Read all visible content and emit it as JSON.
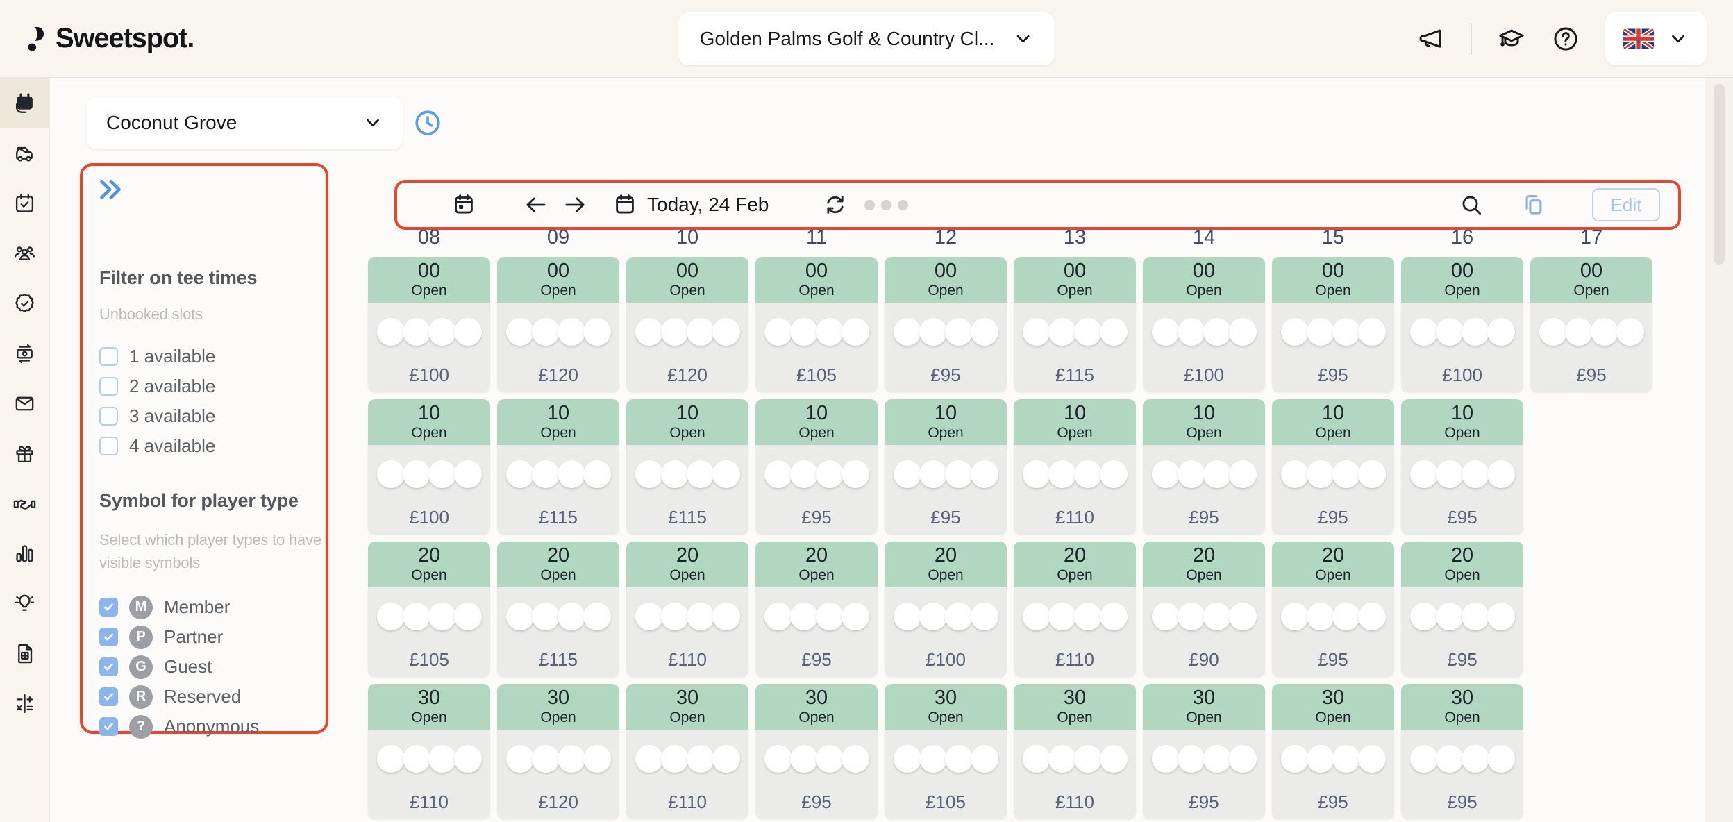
{
  "colors": {
    "cream": "#f8f5ef",
    "content_bg": "#fcfbf9",
    "divider": "#e8e5de",
    "active_item_bg": "#efe8da",
    "green": "#b1d7c1",
    "cell_body": "#ebebe9",
    "price_text": "#57627a",
    "col_header_text": "#3e4a63",
    "muted_gray": "#bdbbb8",
    "blue": "#5f9ce8",
    "checkbox_blue": "#8ab5ed",
    "badge_gray": "#9ca0a5",
    "annotation_red": "#e8452c",
    "edit_blue": "#a9c4e8"
  },
  "header": {
    "logo_text": "Sweetspot.",
    "club_selector_value": "Golden Palms Golf & Country Cl...",
    "icons": [
      "megaphone",
      "graduation-cap",
      "help",
      "uk-flag"
    ]
  },
  "sidebar": {
    "items": [
      {
        "name": "tee-sheet",
        "active": true
      },
      {
        "name": "golf-carts",
        "active": false
      },
      {
        "name": "bookings",
        "active": false
      },
      {
        "name": "members",
        "active": false
      },
      {
        "name": "memberships",
        "active": false
      },
      {
        "name": "payments",
        "active": false
      },
      {
        "name": "messages",
        "active": false
      },
      {
        "name": "vouchers",
        "active": false
      },
      {
        "name": "partners",
        "active": false
      },
      {
        "name": "statistics",
        "active": false
      },
      {
        "name": "insights",
        "active": false
      },
      {
        "name": "invoices",
        "active": false
      },
      {
        "name": "price-rules",
        "active": false
      }
    ]
  },
  "course_bar": {
    "course_selector_value": "Coconut Grove"
  },
  "filters": {
    "title": "Filter on tee times",
    "unbooked_label": "Unbooked slots",
    "unbooked_options": [
      {
        "label": "1 available",
        "checked": false
      },
      {
        "label": "2 available",
        "checked": false
      },
      {
        "label": "3 available",
        "checked": false
      },
      {
        "label": "4 available",
        "checked": false
      }
    ],
    "player_type_title": "Symbol for player type",
    "player_type_desc": "Select which player types to have visible symbols",
    "player_types": [
      {
        "symbol": "M",
        "label": "Member",
        "checked": true
      },
      {
        "symbol": "P",
        "label": "Partner",
        "checked": true
      },
      {
        "symbol": "G",
        "label": "Guest",
        "checked": true
      },
      {
        "symbol": "R",
        "label": "Reserved",
        "checked": true
      },
      {
        "symbol": "?",
        "label": "Anonymous",
        "checked": true
      }
    ]
  },
  "toolbar": {
    "date_label": "Today, 24 Feb",
    "edit_label": "Edit"
  },
  "tee_sheet": {
    "open_label": "Open",
    "slot_capacity": 4,
    "columns": [
      {
        "hour": "08",
        "slots": [
          {
            "minute": "00",
            "price": "£100"
          },
          {
            "minute": "10",
            "price": "£100"
          },
          {
            "minute": "20",
            "price": "£105"
          },
          {
            "minute": "30",
            "price": "£110"
          }
        ]
      },
      {
        "hour": "09",
        "slots": [
          {
            "minute": "00",
            "price": "£120"
          },
          {
            "minute": "10",
            "price": "£115"
          },
          {
            "minute": "20",
            "price": "£115"
          },
          {
            "minute": "30",
            "price": "£120"
          }
        ]
      },
      {
        "hour": "10",
        "slots": [
          {
            "minute": "00",
            "price": "£120"
          },
          {
            "minute": "10",
            "price": "£115"
          },
          {
            "minute": "20",
            "price": "£110"
          },
          {
            "minute": "30",
            "price": "£110"
          }
        ]
      },
      {
        "hour": "11",
        "slots": [
          {
            "minute": "00",
            "price": "£105"
          },
          {
            "minute": "10",
            "price": "£95"
          },
          {
            "minute": "20",
            "price": "£95"
          },
          {
            "minute": "30",
            "price": "£95"
          }
        ]
      },
      {
        "hour": "12",
        "slots": [
          {
            "minute": "00",
            "price": "£95"
          },
          {
            "minute": "10",
            "price": "£95"
          },
          {
            "minute": "20",
            "price": "£100"
          },
          {
            "minute": "30",
            "price": "£105"
          }
        ]
      },
      {
        "hour": "13",
        "slots": [
          {
            "minute": "00",
            "price": "£115"
          },
          {
            "minute": "10",
            "price": "£110"
          },
          {
            "minute": "20",
            "price": "£110"
          },
          {
            "minute": "30",
            "price": "£110"
          }
        ]
      },
      {
        "hour": "14",
        "slots": [
          {
            "minute": "00",
            "price": "£100"
          },
          {
            "minute": "10",
            "price": "£95"
          },
          {
            "minute": "20",
            "price": "£90"
          },
          {
            "minute": "30",
            "price": "£95"
          }
        ]
      },
      {
        "hour": "15",
        "slots": [
          {
            "minute": "00",
            "price": "£95"
          },
          {
            "minute": "10",
            "price": "£95"
          },
          {
            "minute": "20",
            "price": "£95"
          },
          {
            "minute": "30",
            "price": "£95"
          }
        ]
      },
      {
        "hour": "16",
        "slots": [
          {
            "minute": "00",
            "price": "£100"
          },
          {
            "minute": "10",
            "price": "£95"
          },
          {
            "minute": "20",
            "price": "£95"
          },
          {
            "minute": "30",
            "price": "£95"
          }
        ]
      },
      {
        "hour": "17",
        "slots": [
          {
            "minute": "00",
            "price": "£95"
          }
        ]
      }
    ]
  }
}
